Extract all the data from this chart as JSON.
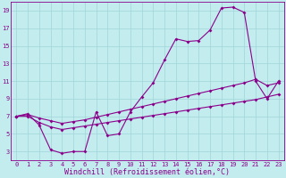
{
  "xlabel": "Windchill (Refroidissement éolien,°C)",
  "bg_color": "#c2ecee",
  "grid_color": "#a0d4d8",
  "line_color": "#8b008b",
  "xlim": [
    -0.5,
    23.5
  ],
  "ylim": [
    2,
    20
  ],
  "xticks": [
    0,
    1,
    2,
    3,
    4,
    5,
    6,
    7,
    8,
    9,
    10,
    11,
    12,
    13,
    14,
    15,
    16,
    17,
    18,
    19,
    20,
    21,
    22,
    23
  ],
  "yticks": [
    3,
    5,
    7,
    9,
    11,
    13,
    15,
    17,
    19
  ],
  "line1_x": [
    0,
    1,
    2,
    3,
    4,
    5,
    6,
    7,
    8,
    9,
    10,
    11,
    12,
    13,
    14,
    15,
    16,
    17,
    18,
    19,
    20,
    21,
    22,
    23
  ],
  "line1_y": [
    7.0,
    7.3,
    6.0,
    3.2,
    2.8,
    3.0,
    3.0,
    7.5,
    4.8,
    5.0,
    7.5,
    9.2,
    10.8,
    13.4,
    15.8,
    15.5,
    15.6,
    16.8,
    19.3,
    19.4,
    18.8,
    11.0,
    9.0,
    11.0
  ],
  "line2_x": [
    0,
    1,
    2,
    3,
    4,
    5,
    6,
    7,
    8,
    9,
    10,
    11,
    12,
    13,
    14,
    15,
    16,
    17,
    18,
    19,
    20,
    21,
    22,
    23
  ],
  "line2_y": [
    7.0,
    7.0,
    6.3,
    5.8,
    5.5,
    5.7,
    5.9,
    6.1,
    6.3,
    6.5,
    6.7,
    6.9,
    7.1,
    7.3,
    7.5,
    7.7,
    7.9,
    8.1,
    8.3,
    8.5,
    8.7,
    8.9,
    9.2,
    9.5
  ],
  "line3_x": [
    0,
    1,
    2,
    3,
    4,
    5,
    6,
    7,
    8,
    9,
    10,
    11,
    12,
    13,
    14,
    15,
    16,
    17,
    18,
    19,
    20,
    21,
    22,
    23
  ],
  "line3_y": [
    7.0,
    7.2,
    6.8,
    6.5,
    6.2,
    6.4,
    6.6,
    6.9,
    7.2,
    7.5,
    7.8,
    8.1,
    8.4,
    8.7,
    9.0,
    9.3,
    9.6,
    9.9,
    10.2,
    10.5,
    10.8,
    11.2,
    10.5,
    10.8
  ],
  "marker": "D",
  "markersize": 2.0,
  "linewidth": 0.8,
  "tick_fontsize": 5.0,
  "label_fontsize": 6.0
}
